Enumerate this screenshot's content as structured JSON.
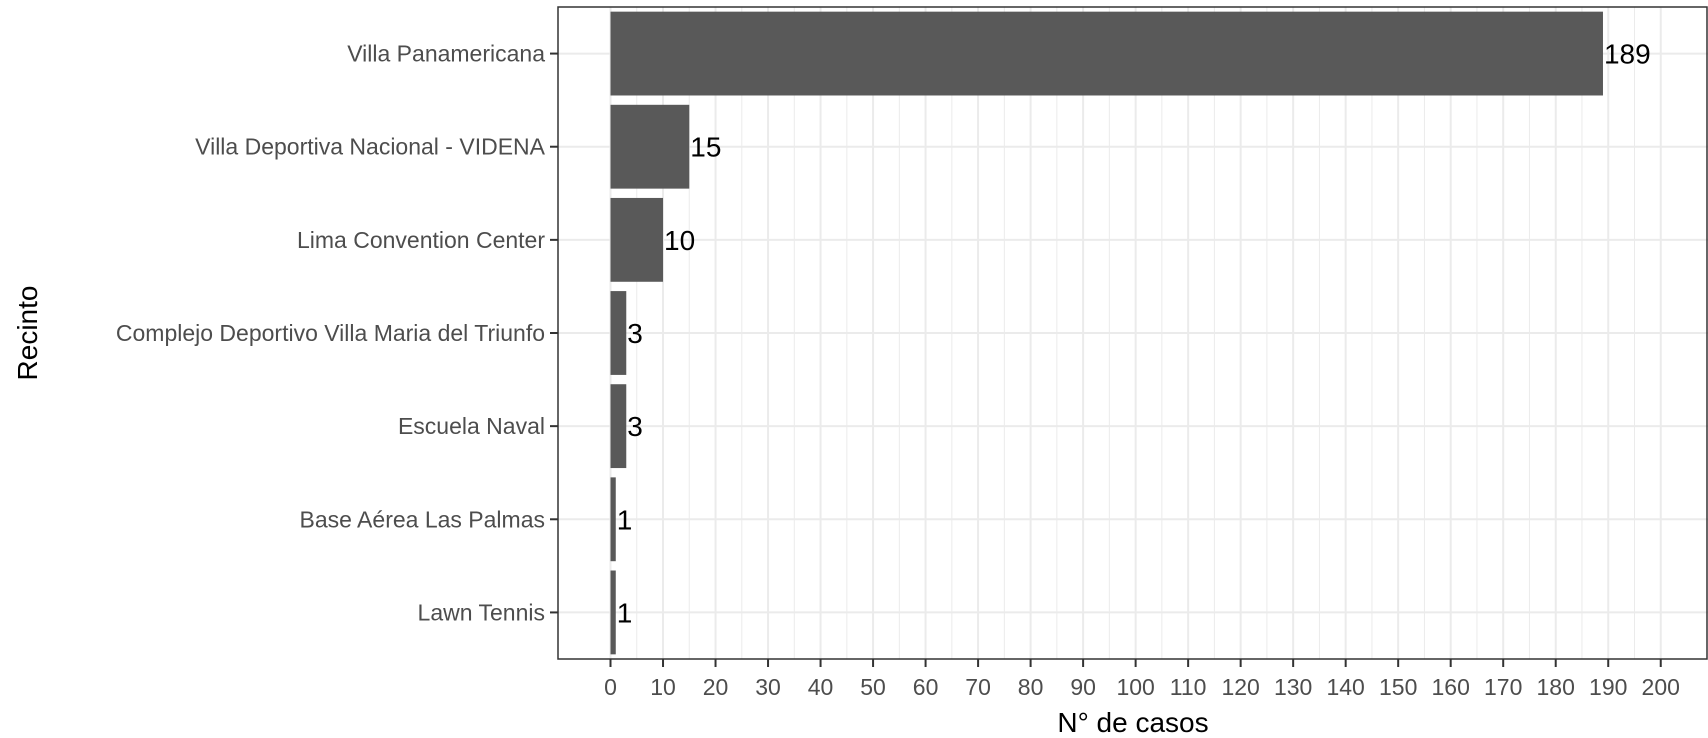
{
  "chart_data": {
    "type": "bar",
    "orientation": "horizontal",
    "categories": [
      "Villa Panamericana",
      "Villa Deportiva Nacional - VIDENA",
      "Lima Convention Center",
      "Complejo Deportivo Villa Maria del Triunfo",
      "Escuela Naval",
      "Base Aérea Las Palmas",
      "Lawn Tennis"
    ],
    "values": [
      189,
      15,
      10,
      3,
      3,
      1,
      1
    ],
    "data_labels": [
      "189",
      "15",
      "10",
      "3",
      "3",
      "1",
      "1"
    ],
    "xlabel": "N° de casos",
    "ylabel": "Recinto",
    "xlim": [
      -10,
      209
    ],
    "x_ticks": [
      0,
      10,
      20,
      30,
      40,
      50,
      60,
      70,
      80,
      90,
      100,
      110,
      120,
      130,
      140,
      150,
      160,
      170,
      180,
      190,
      200
    ],
    "x_tick_labels": [
      "0",
      "10",
      "20",
      "30",
      "40",
      "50",
      "60",
      "70",
      "80",
      "90",
      "100",
      "110",
      "120",
      "130",
      "140",
      "150",
      "160",
      "170",
      "180",
      "190",
      "200"
    ],
    "grid": true,
    "legend": "none",
    "bar_color": "#595959",
    "panel_border_color": "#333333",
    "grid_color": "#ebebeb"
  }
}
